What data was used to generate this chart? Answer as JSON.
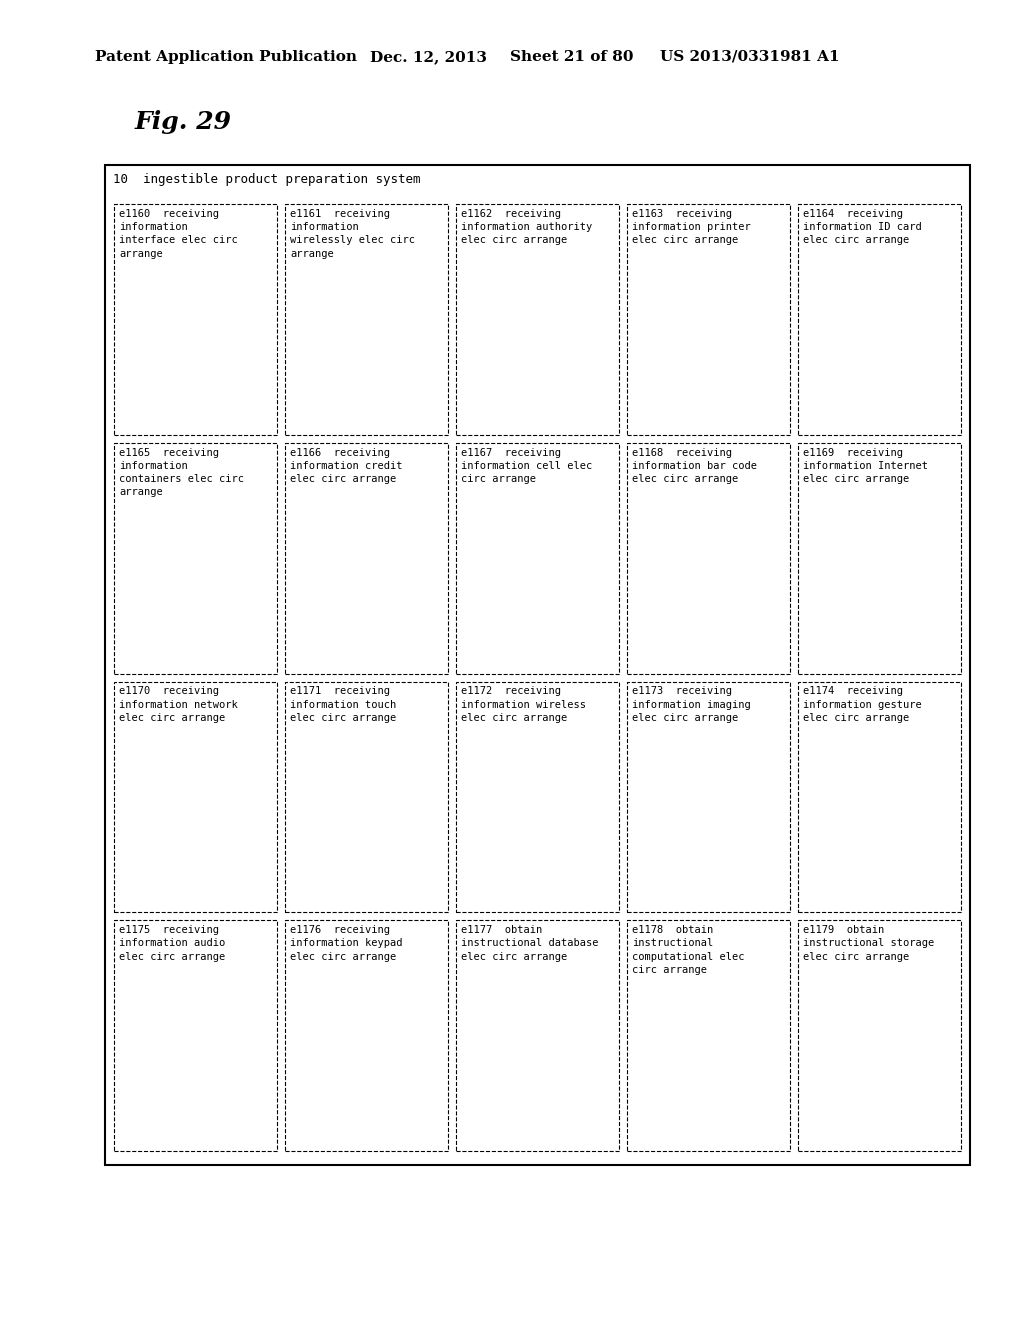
{
  "title_header": "Patent Application Publication",
  "date_header": "Dec. 12, 2013",
  "sheet_header": "Sheet 21 of 80",
  "patent_header": "US 2013/0331981 A1",
  "fig_label": "Fig. 29",
  "system_label": "10  ingestible product preparation system",
  "background_color": "#ffffff",
  "outer_box": true,
  "grid": {
    "rows": 4,
    "cols": 5
  },
  "cells": [
    {
      "row": 0,
      "col": 0,
      "lines": [
        "e1160  receiving",
        "information",
        "interface elec circ",
        "arrange"
      ]
    },
    {
      "row": 0,
      "col": 1,
      "lines": [
        "e1161  receiving",
        "information",
        "wirelessly elec circ",
        "arrange"
      ]
    },
    {
      "row": 0,
      "col": 2,
      "lines": [
        "e1162  receiving",
        "information authority",
        "elec circ arrange"
      ]
    },
    {
      "row": 0,
      "col": 3,
      "lines": [
        "e1163  receiving",
        "information printer",
        "elec circ arrange"
      ]
    },
    {
      "row": 0,
      "col": 4,
      "lines": [
        "e1164  receiving",
        "information ID card",
        "elec circ arrange"
      ]
    },
    {
      "row": 1,
      "col": 0,
      "lines": [
        "e1165  receiving",
        "information",
        "containers elec circ",
        "arrange"
      ]
    },
    {
      "row": 1,
      "col": 1,
      "lines": [
        "e1166  receiving",
        "information credit",
        "elec circ arrange"
      ]
    },
    {
      "row": 1,
      "col": 2,
      "lines": [
        "e1167  receiving",
        "information cell elec",
        "circ arrange"
      ]
    },
    {
      "row": 1,
      "col": 3,
      "lines": [
        "e1168  receiving",
        "information bar code",
        "elec circ arrange"
      ]
    },
    {
      "row": 1,
      "col": 4,
      "lines": [
        "e1169  receiving",
        "information Internet",
        "elec circ arrange"
      ]
    },
    {
      "row": 2,
      "col": 0,
      "lines": [
        "e1170  receiving",
        "information network",
        "elec circ arrange"
      ]
    },
    {
      "row": 2,
      "col": 1,
      "lines": [
        "e1171  receiving",
        "information touch",
        "elec circ arrange"
      ]
    },
    {
      "row": 2,
      "col": 2,
      "lines": [
        "e1172  receiving",
        "information wireless",
        "elec circ arrange"
      ]
    },
    {
      "row": 2,
      "col": 3,
      "lines": [
        "e1173  receiving",
        "information imaging",
        "elec circ arrange"
      ]
    },
    {
      "row": 2,
      "col": 4,
      "lines": [
        "e1174  receiving",
        "information gesture",
        "elec circ arrange"
      ]
    },
    {
      "row": 3,
      "col": 0,
      "lines": [
        "e1175  receiving",
        "information audio",
        "elec circ arrange"
      ]
    },
    {
      "row": 3,
      "col": 1,
      "lines": [
        "e1176  receiving",
        "information keypad",
        "elec circ arrange"
      ]
    },
    {
      "row": 3,
      "col": 2,
      "lines": [
        "e1177  obtain",
        "instructional database",
        "elec circ arrange"
      ]
    },
    {
      "row": 3,
      "col": 3,
      "lines": [
        "e1178  obtain",
        "instructional",
        "computational elec",
        "circ arrange"
      ]
    },
    {
      "row": 3,
      "col": 4,
      "lines": [
        "e1179  obtain",
        "instructional storage",
        "elec circ arrange"
      ]
    }
  ]
}
